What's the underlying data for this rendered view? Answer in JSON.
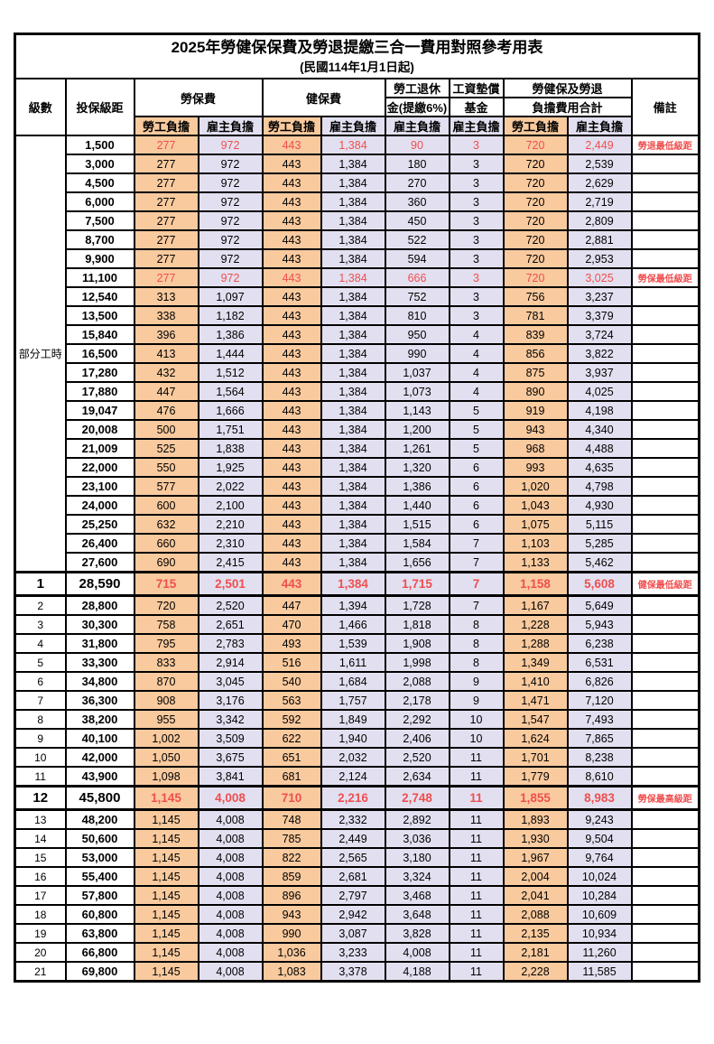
{
  "title": "2025年勞健保保費及勞退提繳三合一費用對照參考用表",
  "subtitle": "(民國114年1月1日起)",
  "header": {
    "level": "級數",
    "salary": "投保級距",
    "labor": "勞保費",
    "health": "健保費",
    "pension_line1": "勞工退休",
    "pension_line2": "金(提繳6%)",
    "wage_fund_line1": "工資墊償",
    "wage_fund_line2": "基金",
    "total_line1": "勞健保及勞退",
    "total_line2": "負擔費用合計",
    "note": "備註",
    "employee": "勞工負擔",
    "employer": "雇主負擔"
  },
  "part_time_label": "部分工時",
  "colors": {
    "employee_bg": "#F9CA9E",
    "employer_bg": "#E2E0F0",
    "highlight_text": "#F04E4E",
    "border": "#000000"
  },
  "rows": [
    {
      "level": "",
      "salary": "1,500",
      "labor_emp": "277",
      "labor_er": "972",
      "health_emp": "443",
      "health_er": "1,384",
      "pension_er": "90",
      "wage_fund_er": "3",
      "total_emp": "720",
      "total_er": "2,449",
      "note": "勞退最低級距",
      "highlight": true,
      "emphasis": false
    },
    {
      "level": "",
      "salary": "3,000",
      "labor_emp": "277",
      "labor_er": "972",
      "health_emp": "443",
      "health_er": "1,384",
      "pension_er": "180",
      "wage_fund_er": "3",
      "total_emp": "720",
      "total_er": "2,539",
      "note": "",
      "highlight": false,
      "emphasis": false
    },
    {
      "level": "",
      "salary": "4,500",
      "labor_emp": "277",
      "labor_er": "972",
      "health_emp": "443",
      "health_er": "1,384",
      "pension_er": "270",
      "wage_fund_er": "3",
      "total_emp": "720",
      "total_er": "2,629",
      "note": "",
      "highlight": false,
      "emphasis": false
    },
    {
      "level": "",
      "salary": "6,000",
      "labor_emp": "277",
      "labor_er": "972",
      "health_emp": "443",
      "health_er": "1,384",
      "pension_er": "360",
      "wage_fund_er": "3",
      "total_emp": "720",
      "total_er": "2,719",
      "note": "",
      "highlight": false,
      "emphasis": false
    },
    {
      "level": "",
      "salary": "7,500",
      "labor_emp": "277",
      "labor_er": "972",
      "health_emp": "443",
      "health_er": "1,384",
      "pension_er": "450",
      "wage_fund_er": "3",
      "total_emp": "720",
      "total_er": "2,809",
      "note": "",
      "highlight": false,
      "emphasis": false
    },
    {
      "level": "",
      "salary": "8,700",
      "labor_emp": "277",
      "labor_er": "972",
      "health_emp": "443",
      "health_er": "1,384",
      "pension_er": "522",
      "wage_fund_er": "3",
      "total_emp": "720",
      "total_er": "2,881",
      "note": "",
      "highlight": false,
      "emphasis": false
    },
    {
      "level": "",
      "salary": "9,900",
      "labor_emp": "277",
      "labor_er": "972",
      "health_emp": "443",
      "health_er": "1,384",
      "pension_er": "594",
      "wage_fund_er": "3",
      "total_emp": "720",
      "total_er": "2,953",
      "note": "",
      "highlight": false,
      "emphasis": false
    },
    {
      "level": "",
      "salary": "11,100",
      "labor_emp": "277",
      "labor_er": "972",
      "health_emp": "443",
      "health_er": "1,384",
      "pension_er": "666",
      "wage_fund_er": "3",
      "total_emp": "720",
      "total_er": "3,025",
      "note": "勞保最低級距",
      "highlight": true,
      "emphasis": false
    },
    {
      "level": "",
      "salary": "12,540",
      "labor_emp": "313",
      "labor_er": "1,097",
      "health_emp": "443",
      "health_er": "1,384",
      "pension_er": "752",
      "wage_fund_er": "3",
      "total_emp": "756",
      "total_er": "3,237",
      "note": "",
      "highlight": false,
      "emphasis": false
    },
    {
      "level": "",
      "salary": "13,500",
      "labor_emp": "338",
      "labor_er": "1,182",
      "health_emp": "443",
      "health_er": "1,384",
      "pension_er": "810",
      "wage_fund_er": "3",
      "total_emp": "781",
      "total_er": "3,379",
      "note": "",
      "highlight": false,
      "emphasis": false
    },
    {
      "level": "",
      "salary": "15,840",
      "labor_emp": "396",
      "labor_er": "1,386",
      "health_emp": "443",
      "health_er": "1,384",
      "pension_er": "950",
      "wage_fund_er": "4",
      "total_emp": "839",
      "total_er": "3,724",
      "note": "",
      "highlight": false,
      "emphasis": false
    },
    {
      "level": "",
      "salary": "16,500",
      "labor_emp": "413",
      "labor_er": "1,444",
      "health_emp": "443",
      "health_er": "1,384",
      "pension_er": "990",
      "wage_fund_er": "4",
      "total_emp": "856",
      "total_er": "3,822",
      "note": "",
      "highlight": false,
      "emphasis": false
    },
    {
      "level": "",
      "salary": "17,280",
      "labor_emp": "432",
      "labor_er": "1,512",
      "health_emp": "443",
      "health_er": "1,384",
      "pension_er": "1,037",
      "wage_fund_er": "4",
      "total_emp": "875",
      "total_er": "3,937",
      "note": "",
      "highlight": false,
      "emphasis": false
    },
    {
      "level": "",
      "salary": "17,880",
      "labor_emp": "447",
      "labor_er": "1,564",
      "health_emp": "443",
      "health_er": "1,384",
      "pension_er": "1,073",
      "wage_fund_er": "4",
      "total_emp": "890",
      "total_er": "4,025",
      "note": "",
      "highlight": false,
      "emphasis": false
    },
    {
      "level": "",
      "salary": "19,047",
      "labor_emp": "476",
      "labor_er": "1,666",
      "health_emp": "443",
      "health_er": "1,384",
      "pension_er": "1,143",
      "wage_fund_er": "5",
      "total_emp": "919",
      "total_er": "4,198",
      "note": "",
      "highlight": false,
      "emphasis": false
    },
    {
      "level": "",
      "salary": "20,008",
      "labor_emp": "500",
      "labor_er": "1,751",
      "health_emp": "443",
      "health_er": "1,384",
      "pension_er": "1,200",
      "wage_fund_er": "5",
      "total_emp": "943",
      "total_er": "4,340",
      "note": "",
      "highlight": false,
      "emphasis": false
    },
    {
      "level": "",
      "salary": "21,009",
      "labor_emp": "525",
      "labor_er": "1,838",
      "health_emp": "443",
      "health_er": "1,384",
      "pension_er": "1,261",
      "wage_fund_er": "5",
      "total_emp": "968",
      "total_er": "4,488",
      "note": "",
      "highlight": false,
      "emphasis": false
    },
    {
      "level": "",
      "salary": "22,000",
      "labor_emp": "550",
      "labor_er": "1,925",
      "health_emp": "443",
      "health_er": "1,384",
      "pension_er": "1,320",
      "wage_fund_er": "6",
      "total_emp": "993",
      "total_er": "4,635",
      "note": "",
      "highlight": false,
      "emphasis": false
    },
    {
      "level": "",
      "salary": "23,100",
      "labor_emp": "577",
      "labor_er": "2,022",
      "health_emp": "443",
      "health_er": "1,384",
      "pension_er": "1,386",
      "wage_fund_er": "6",
      "total_emp": "1,020",
      "total_er": "4,798",
      "note": "",
      "highlight": false,
      "emphasis": false
    },
    {
      "level": "",
      "salary": "24,000",
      "labor_emp": "600",
      "labor_er": "2,100",
      "health_emp": "443",
      "health_er": "1,384",
      "pension_er": "1,440",
      "wage_fund_er": "6",
      "total_emp": "1,043",
      "total_er": "4,930",
      "note": "",
      "highlight": false,
      "emphasis": false
    },
    {
      "level": "",
      "salary": "25,250",
      "labor_emp": "632",
      "labor_er": "2,210",
      "health_emp": "443",
      "health_er": "1,384",
      "pension_er": "1,515",
      "wage_fund_er": "6",
      "total_emp": "1,075",
      "total_er": "5,115",
      "note": "",
      "highlight": false,
      "emphasis": false
    },
    {
      "level": "",
      "salary": "26,400",
      "labor_emp": "660",
      "labor_er": "2,310",
      "health_emp": "443",
      "health_er": "1,384",
      "pension_er": "1,584",
      "wage_fund_er": "7",
      "total_emp": "1,103",
      "total_er": "5,285",
      "note": "",
      "highlight": false,
      "emphasis": false
    },
    {
      "level": "",
      "salary": "27,600",
      "labor_emp": "690",
      "labor_er": "2,415",
      "health_emp": "443",
      "health_er": "1,384",
      "pension_er": "1,656",
      "wage_fund_er": "7",
      "total_emp": "1,133",
      "total_er": "5,462",
      "note": "",
      "highlight": false,
      "emphasis": false
    },
    {
      "level": "1",
      "salary": "28,590",
      "labor_emp": "715",
      "labor_er": "2,501",
      "health_emp": "443",
      "health_er": "1,384",
      "pension_er": "1,715",
      "wage_fund_er": "7",
      "total_emp": "1,158",
      "total_er": "5,608",
      "note": "健保最低級距",
      "highlight": true,
      "emphasis": true
    },
    {
      "level": "2",
      "salary": "28,800",
      "labor_emp": "720",
      "labor_er": "2,520",
      "health_emp": "447",
      "health_er": "1,394",
      "pension_er": "1,728",
      "wage_fund_er": "7",
      "total_emp": "1,167",
      "total_er": "5,649",
      "note": "",
      "highlight": false,
      "emphasis": false
    },
    {
      "level": "3",
      "salary": "30,300",
      "labor_emp": "758",
      "labor_er": "2,651",
      "health_emp": "470",
      "health_er": "1,466",
      "pension_er": "1,818",
      "wage_fund_er": "8",
      "total_emp": "1,228",
      "total_er": "5,943",
      "note": "",
      "highlight": false,
      "emphasis": false
    },
    {
      "level": "4",
      "salary": "31,800",
      "labor_emp": "795",
      "labor_er": "2,783",
      "health_emp": "493",
      "health_er": "1,539",
      "pension_er": "1,908",
      "wage_fund_er": "8",
      "total_emp": "1,288",
      "total_er": "6,238",
      "note": "",
      "highlight": false,
      "emphasis": false
    },
    {
      "level": "5",
      "salary": "33,300",
      "labor_emp": "833",
      "labor_er": "2,914",
      "health_emp": "516",
      "health_er": "1,611",
      "pension_er": "1,998",
      "wage_fund_er": "8",
      "total_emp": "1,349",
      "total_er": "6,531",
      "note": "",
      "highlight": false,
      "emphasis": false
    },
    {
      "level": "6",
      "salary": "34,800",
      "labor_emp": "870",
      "labor_er": "3,045",
      "health_emp": "540",
      "health_er": "1,684",
      "pension_er": "2,088",
      "wage_fund_er": "9",
      "total_emp": "1,410",
      "total_er": "6,826",
      "note": "",
      "highlight": false,
      "emphasis": false
    },
    {
      "level": "7",
      "salary": "36,300",
      "labor_emp": "908",
      "labor_er": "3,176",
      "health_emp": "563",
      "health_er": "1,757",
      "pension_er": "2,178",
      "wage_fund_er": "9",
      "total_emp": "1,471",
      "total_er": "7,120",
      "note": "",
      "highlight": false,
      "emphasis": false
    },
    {
      "level": "8",
      "salary": "38,200",
      "labor_emp": "955",
      "labor_er": "3,342",
      "health_emp": "592",
      "health_er": "1,849",
      "pension_er": "2,292",
      "wage_fund_er": "10",
      "total_emp": "1,547",
      "total_er": "7,493",
      "note": "",
      "highlight": false,
      "emphasis": false
    },
    {
      "level": "9",
      "salary": "40,100",
      "labor_emp": "1,002",
      "labor_er": "3,509",
      "health_emp": "622",
      "health_er": "1,940",
      "pension_er": "2,406",
      "wage_fund_er": "10",
      "total_emp": "1,624",
      "total_er": "7,865",
      "note": "",
      "highlight": false,
      "emphasis": false
    },
    {
      "level": "10",
      "salary": "42,000",
      "labor_emp": "1,050",
      "labor_er": "3,675",
      "health_emp": "651",
      "health_er": "2,032",
      "pension_er": "2,520",
      "wage_fund_er": "11",
      "total_emp": "1,701",
      "total_er": "8,238",
      "note": "",
      "highlight": false,
      "emphasis": false
    },
    {
      "level": "11",
      "salary": "43,900",
      "labor_emp": "1,098",
      "labor_er": "3,841",
      "health_emp": "681",
      "health_er": "2,124",
      "pension_er": "2,634",
      "wage_fund_er": "11",
      "total_emp": "1,779",
      "total_er": "8,610",
      "note": "",
      "highlight": false,
      "emphasis": false
    },
    {
      "level": "12",
      "salary": "45,800",
      "labor_emp": "1,145",
      "labor_er": "4,008",
      "health_emp": "710",
      "health_er": "2,216",
      "pension_er": "2,748",
      "wage_fund_er": "11",
      "total_emp": "1,855",
      "total_er": "8,983",
      "note": "勞保最高級距",
      "highlight": true,
      "emphasis": true
    },
    {
      "level": "13",
      "salary": "48,200",
      "labor_emp": "1,145",
      "labor_er": "4,008",
      "health_emp": "748",
      "health_er": "2,332",
      "pension_er": "2,892",
      "wage_fund_er": "11",
      "total_emp": "1,893",
      "total_er": "9,243",
      "note": "",
      "highlight": false,
      "emphasis": false
    },
    {
      "level": "14",
      "salary": "50,600",
      "labor_emp": "1,145",
      "labor_er": "4,008",
      "health_emp": "785",
      "health_er": "2,449",
      "pension_er": "3,036",
      "wage_fund_er": "11",
      "total_emp": "1,930",
      "total_er": "9,504",
      "note": "",
      "highlight": false,
      "emphasis": false
    },
    {
      "level": "15",
      "salary": "53,000",
      "labor_emp": "1,145",
      "labor_er": "4,008",
      "health_emp": "822",
      "health_er": "2,565",
      "pension_er": "3,180",
      "wage_fund_er": "11",
      "total_emp": "1,967",
      "total_er": "9,764",
      "note": "",
      "highlight": false,
      "emphasis": false
    },
    {
      "level": "16",
      "salary": "55,400",
      "labor_emp": "1,145",
      "labor_er": "4,008",
      "health_emp": "859",
      "health_er": "2,681",
      "pension_er": "3,324",
      "wage_fund_er": "11",
      "total_emp": "2,004",
      "total_er": "10,024",
      "note": "",
      "highlight": false,
      "emphasis": false
    },
    {
      "level": "17",
      "salary": "57,800",
      "labor_emp": "1,145",
      "labor_er": "4,008",
      "health_emp": "896",
      "health_er": "2,797",
      "pension_er": "3,468",
      "wage_fund_er": "11",
      "total_emp": "2,041",
      "total_er": "10,284",
      "note": "",
      "highlight": false,
      "emphasis": false
    },
    {
      "level": "18",
      "salary": "60,800",
      "labor_emp": "1,145",
      "labor_er": "4,008",
      "health_emp": "943",
      "health_er": "2,942",
      "pension_er": "3,648",
      "wage_fund_er": "11",
      "total_emp": "2,088",
      "total_er": "10,609",
      "note": "",
      "highlight": false,
      "emphasis": false
    },
    {
      "level": "19",
      "salary": "63,800",
      "labor_emp": "1,145",
      "labor_er": "4,008",
      "health_emp": "990",
      "health_er": "3,087",
      "pension_er": "3,828",
      "wage_fund_er": "11",
      "total_emp": "2,135",
      "total_er": "10,934",
      "note": "",
      "highlight": false,
      "emphasis": false
    },
    {
      "level": "20",
      "salary": "66,800",
      "labor_emp": "1,145",
      "labor_er": "4,008",
      "health_emp": "1,036",
      "health_er": "3,233",
      "pension_er": "4,008",
      "wage_fund_er": "11",
      "total_emp": "2,181",
      "total_er": "11,260",
      "note": "",
      "highlight": false,
      "emphasis": false
    },
    {
      "level": "21",
      "salary": "69,800",
      "labor_emp": "1,145",
      "labor_er": "4,008",
      "health_emp": "1,083",
      "health_er": "3,378",
      "pension_er": "4,188",
      "wage_fund_er": "11",
      "total_emp": "2,228",
      "total_er": "11,585",
      "note": "",
      "highlight": false,
      "emphasis": false
    }
  ]
}
